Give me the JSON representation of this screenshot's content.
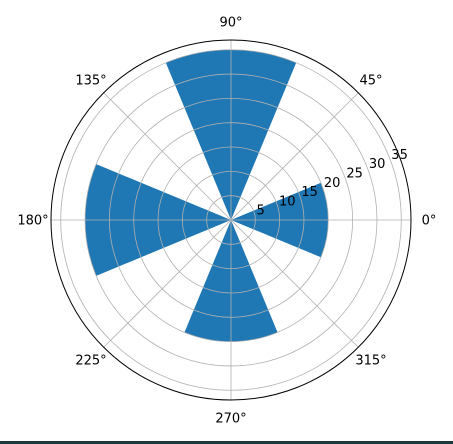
{
  "chart_data": {
    "type": "bar",
    "projection": "polar",
    "theta_unit": "degrees",
    "angular_ticks": [
      "0°",
      "45°",
      "90°",
      "135°",
      "180°",
      "225°",
      "270°",
      "315°"
    ],
    "radial_ticks": [
      "5",
      "10",
      "15",
      "20",
      "25",
      "30",
      "35"
    ],
    "radial_tick_values": [
      5,
      10,
      15,
      20,
      25,
      30,
      35
    ],
    "rlim": [
      0,
      37
    ],
    "grid": true,
    "bar_color": "#1f77b4",
    "bars": [
      {
        "theta": 0,
        "width": 45,
        "r": 20
      },
      {
        "theta": 90,
        "width": 45,
        "r": 35
      },
      {
        "theta": 180,
        "width": 45,
        "r": 30
      },
      {
        "theta": 270,
        "width": 45,
        "r": 25
      }
    ]
  }
}
